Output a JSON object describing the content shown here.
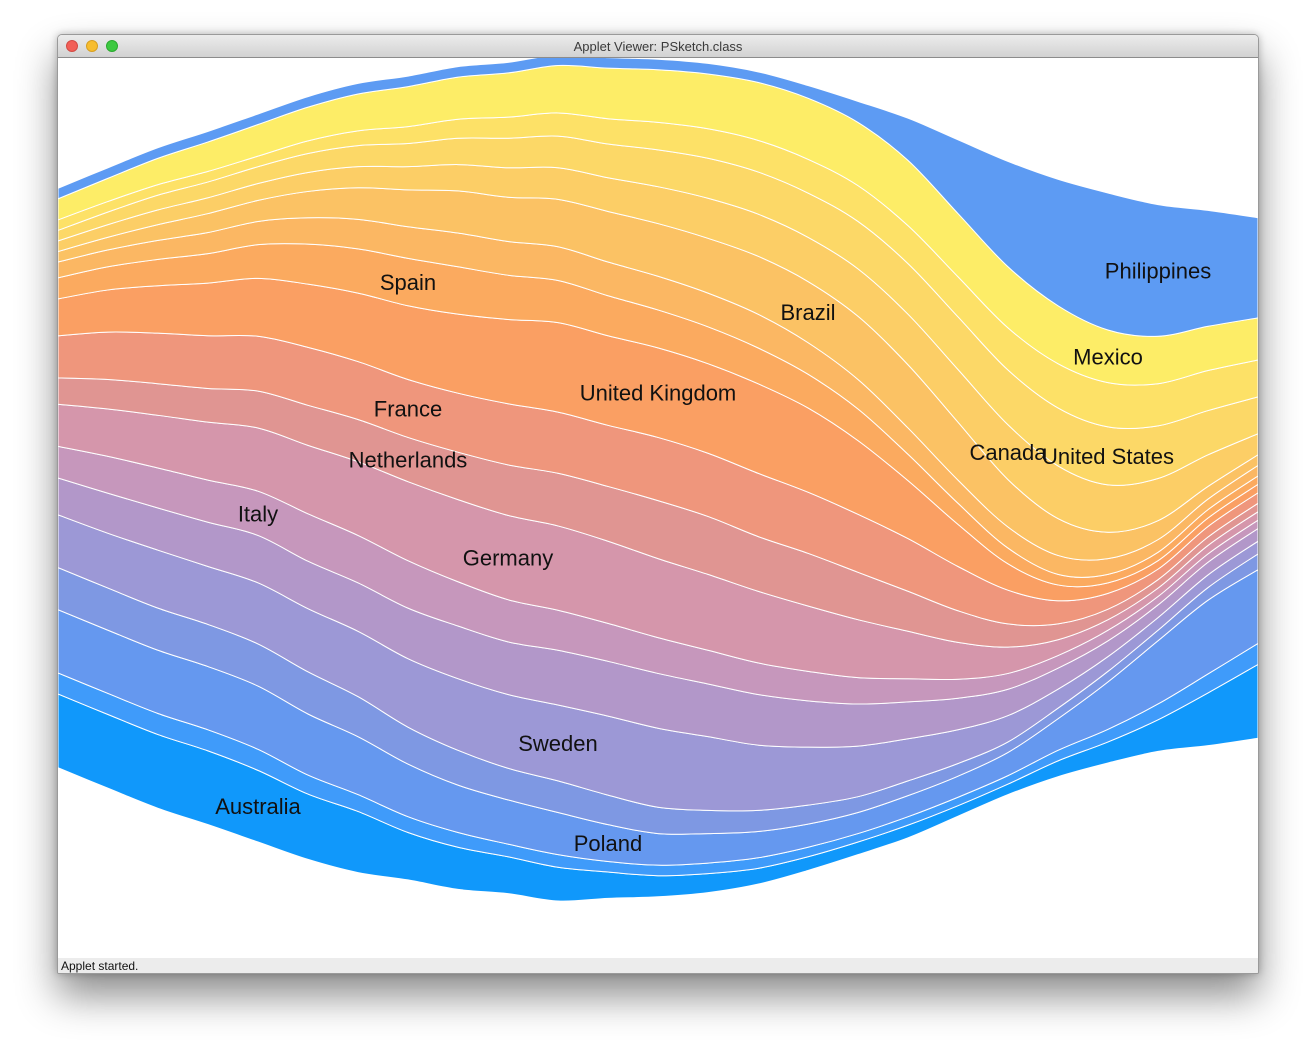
{
  "window": {
    "title": "Applet Viewer: PSketch.class"
  },
  "status": {
    "text": "Applet started."
  },
  "chart_data": {
    "type": "area",
    "subtype": "streamgraph",
    "title": "",
    "xlabel": "",
    "ylabel": "",
    "grid": false,
    "legend": "none (labels placed inside streams)",
    "x": [
      0,
      1,
      2,
      3,
      4,
      5,
      6,
      7,
      8,
      9,
      10,
      11,
      12,
      13,
      14,
      15,
      16,
      17,
      18,
      19,
      20,
      21,
      22,
      23,
      24
    ],
    "series": [
      {
        "name": "Australia",
        "color": "#1098fb",
        "label_at": 4,
        "values": [
          70,
          70,
          70,
          70,
          68,
          62,
          58,
          45,
          40,
          35,
          32,
          25,
          20,
          18,
          15,
          13,
          12,
          12,
          10,
          10,
          15,
          20,
          30,
          50,
          70
        ]
      },
      {
        "name": "",
        "color": "#3f9bfa",
        "values": [
          20,
          20,
          20,
          20,
          20,
          18,
          16,
          15,
          14,
          12,
          12,
          10,
          10,
          10,
          10,
          9,
          8,
          8,
          8,
          8,
          10,
          12,
          15,
          18,
          20
        ]
      },
      {
        "name": "Poland",
        "color": "#6598ef",
        "label_at": 11,
        "values": [
          60,
          60,
          60,
          60,
          60,
          58,
          55,
          50,
          45,
          42,
          40,
          35,
          30,
          28,
          25,
          22,
          20,
          20,
          20,
          22,
          30,
          45,
          60,
          70,
          70
        ]
      },
      {
        "name": "",
        "color": "#7e98e3",
        "values": [
          40,
          40,
          40,
          40,
          40,
          40,
          38,
          35,
          33,
          30,
          30,
          28,
          25,
          22,
          20,
          18,
          15,
          14,
          12,
          10,
          10,
          10,
          10,
          12,
          15
        ]
      },
      {
        "name": "Sweden",
        "color": "#9c98d6",
        "label_at": 10,
        "values": [
          50,
          52,
          55,
          55,
          58,
          60,
          62,
          65,
          68,
          70,
          72,
          75,
          75,
          70,
          62,
          55,
          48,
          40,
          32,
          25,
          18,
          14,
          12,
          12,
          12
        ]
      },
      {
        "name": "",
        "color": "#b297c9",
        "values": [
          35,
          38,
          40,
          42,
          45,
          45,
          46,
          48,
          50,
          50,
          52,
          52,
          52,
          50,
          48,
          44,
          40,
          35,
          30,
          25,
          20,
          15,
          12,
          12,
          12
        ]
      },
      {
        "name": "Italy",
        "color": "#c697bc",
        "label_at": 4,
        "values": [
          30,
          35,
          38,
          40,
          42,
          45,
          45,
          45,
          42,
          40,
          38,
          36,
          34,
          32,
          30,
          28,
          25,
          22,
          18,
          15,
          12,
          10,
          8,
          8,
          8
        ]
      },
      {
        "name": "Germany",
        "color": "#d596ab",
        "label_at": 9,
        "values": [
          40,
          45,
          50,
          55,
          60,
          65,
          70,
          75,
          78,
          80,
          80,
          78,
          75,
          72,
          68,
          62,
          55,
          45,
          35,
          25,
          15,
          10,
          8,
          8,
          8
        ]
      },
      {
        "name": "Netherlands",
        "color": "#e09592",
        "label_at": 7,
        "values": [
          25,
          28,
          30,
          32,
          35,
          38,
          40,
          42,
          45,
          48,
          50,
          52,
          55,
          55,
          52,
          50,
          45,
          38,
          30,
          22,
          15,
          10,
          8,
          8,
          8
        ]
      },
      {
        "name": "France",
        "color": "#ef967c",
        "label_at": 7,
        "values": [
          40,
          45,
          48,
          50,
          52,
          55,
          55,
          55,
          56,
          58,
          58,
          58,
          60,
          60,
          60,
          58,
          55,
          50,
          42,
          32,
          22,
          15,
          10,
          10,
          10
        ]
      },
      {
        "name": "United Kingdom",
        "color": "#fa9f63",
        "label_at": 12,
        "values": [
          35,
          40,
          45,
          50,
          55,
          60,
          65,
          70,
          75,
          80,
          85,
          85,
          85,
          85,
          85,
          80,
          70,
          55,
          40,
          25,
          15,
          10,
          8,
          8,
          8
        ]
      },
      {
        "name": "Spain",
        "color": "#fbaa5f",
        "label_at": 7,
        "values": [
          20,
          22,
          25,
          28,
          32,
          38,
          42,
          45,
          45,
          42,
          40,
          38,
          36,
          35,
          34,
          32,
          30,
          25,
          20,
          15,
          10,
          8,
          8,
          8,
          8
        ]
      },
      {
        "name": "",
        "color": "#fbb763",
        "values": [
          15,
          16,
          18,
          20,
          22,
          25,
          28,
          30,
          32,
          32,
          32,
          32,
          32,
          32,
          32,
          30,
          28,
          25,
          22,
          20,
          18,
          15,
          12,
          10,
          10
        ]
      },
      {
        "name": "Brazil",
        "color": "#fbc264",
        "label_at": 15,
        "values": [
          10,
          12,
          15,
          18,
          20,
          25,
          30,
          35,
          40,
          42,
          45,
          48,
          50,
          52,
          55,
          58,
          60,
          60,
          55,
          45,
          35,
          25,
          18,
          12,
          10
        ]
      },
      {
        "name": "Canada",
        "color": "#fcce66",
        "label_at": 19,
        "values": [
          10,
          12,
          14,
          15,
          16,
          18,
          20,
          22,
          25,
          28,
          30,
          32,
          35,
          38,
          40,
          42,
          45,
          48,
          50,
          52,
          50,
          45,
          40,
          30,
          20
        ]
      },
      {
        "name": "United States",
        "color": "#fcd867",
        "label_at": 21,
        "values": [
          10,
          12,
          14,
          15,
          16,
          18,
          20,
          22,
          25,
          28,
          30,
          32,
          35,
          38,
          40,
          42,
          45,
          48,
          50,
          52,
          55,
          55,
          50,
          42,
          35
        ]
      },
      {
        "name": "",
        "color": "#fde167",
        "values": [
          10,
          10,
          10,
          10,
          10,
          12,
          14,
          16,
          18,
          20,
          22,
          24,
          26,
          28,
          30,
          32,
          34,
          36,
          38,
          40,
          42,
          42,
          40,
          38,
          35
        ]
      },
      {
        "name": "Mexico",
        "color": "#fded67",
        "label_at": 21,
        "values": [
          20,
          22,
          25,
          28,
          30,
          32,
          35,
          38,
          40,
          42,
          45,
          48,
          50,
          52,
          55,
          58,
          60,
          62,
          60,
          58,
          55,
          50,
          45,
          42,
          40
        ]
      },
      {
        "name": "Philippines",
        "color": "#5d9bf3",
        "label_at": 22,
        "values": [
          10,
          10,
          10,
          10,
          10,
          10,
          10,
          10,
          10,
          10,
          10,
          10,
          10,
          10,
          10,
          12,
          20,
          40,
          70,
          100,
          120,
          130,
          125,
          110,
          95
        ]
      }
    ]
  }
}
